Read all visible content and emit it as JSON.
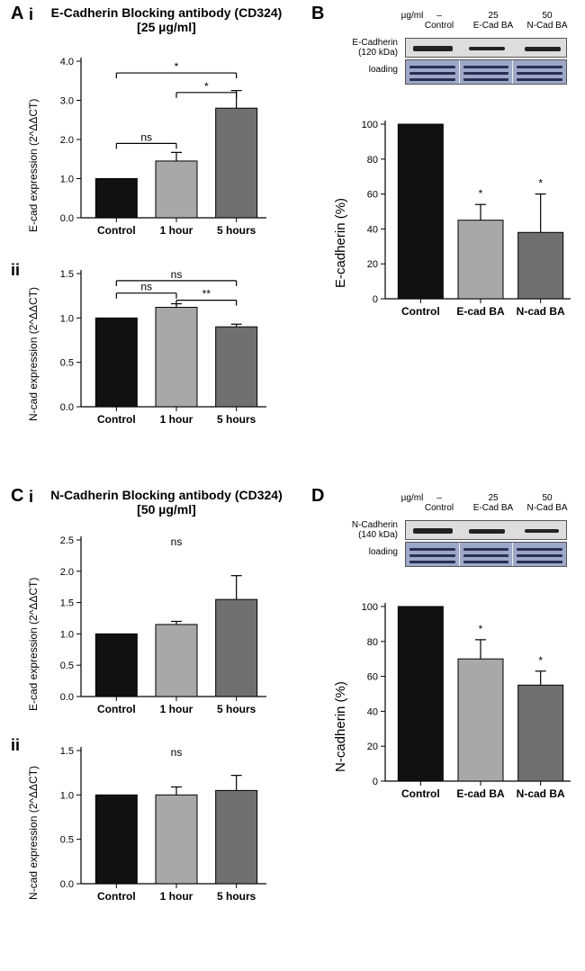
{
  "labels": {
    "A": "A",
    "Ai_sub": "i",
    "Aii_sub": "ii",
    "B": "B",
    "C": "C",
    "Ci_sub": "i",
    "Cii_sub": "ii",
    "D": "D"
  },
  "titles": {
    "A": "E-Cadherin Blocking antibody (CD324) [25 µg/ml]",
    "C": "N-Cadherin Blocking antibody (CD324) [50 µg/ml]"
  },
  "ylabels": {
    "Ecad_expr": "E-cad expression (2^ΔΔCT)",
    "Ncad_expr": "N-cad expression (2^ΔΔCT)",
    "Ecad_pct": "E-cadherin (%)",
    "Ncad_pct": "N-cadherin (%)"
  },
  "xcats_time": [
    "Control",
    "1 hour",
    "5 hours"
  ],
  "xcats_ba": [
    "Control",
    "E-cad BA",
    "N-cad BA"
  ],
  "blot_header": {
    "ug": "µg/ml",
    "ctrl": "–\nControl",
    "e25": "25\nE-Cad BA",
    "n50": "50\nN-Cad BA"
  },
  "blot_labels": {
    "Ecad": "E-Cadherin\n(120 kDa)",
    "Ncad": "N-Cadherin\n(140 kDa)",
    "loading": "loading"
  },
  "colors": {
    "c1": "#111111",
    "c2": "#a8a8a8",
    "c3": "#707070",
    "bg": "#ffffff"
  },
  "charts": {
    "Ai": {
      "ymax": 4,
      "step": 1,
      "vals": [
        1.0,
        1.45,
        2.8
      ],
      "errs": [
        0,
        0.22,
        0.45
      ],
      "sig": [
        {
          "from": 0,
          "to": 2,
          "y": 3.7,
          "t": "*"
        },
        {
          "from": 1,
          "to": 2,
          "y": 3.2,
          "t": "*"
        },
        {
          "from": 0,
          "to": 1,
          "y": 1.9,
          "t": "ns"
        }
      ]
    },
    "Aii": {
      "ymax": 1.5,
      "step": 0.5,
      "vals": [
        1.0,
        1.12,
        0.9
      ],
      "errs": [
        0,
        0.04,
        0.03
      ],
      "sig": [
        {
          "from": 0,
          "to": 2,
          "y": 1.42,
          "t": "ns"
        },
        {
          "from": 0,
          "to": 1,
          "y": 1.28,
          "t": "ns"
        },
        {
          "from": 1,
          "to": 2,
          "y": 1.2,
          "t": "**"
        }
      ]
    },
    "B": {
      "ymax": 100,
      "step": 20,
      "vals": [
        100,
        45,
        38
      ],
      "errs": [
        0,
        9,
        22
      ],
      "sig_inline": [
        {
          "i": 1,
          "t": "*"
        },
        {
          "i": 2,
          "t": "*"
        }
      ]
    },
    "Ci": {
      "ymax": 2.5,
      "step": 0.5,
      "vals": [
        1.0,
        1.15,
        1.55
      ],
      "errs": [
        0,
        0.05,
        0.38
      ],
      "top": "ns"
    },
    "Cii": {
      "ymax": 1.5,
      "step": 0.5,
      "vals": [
        1.0,
        1.0,
        1.05
      ],
      "errs": [
        0,
        0.09,
        0.17
      ],
      "top": "ns"
    },
    "D": {
      "ymax": 100,
      "step": 20,
      "vals": [
        100,
        70,
        55
      ],
      "errs": [
        0,
        11,
        8
      ],
      "sig_inline": [
        {
          "i": 1,
          "t": "*"
        },
        {
          "i": 2,
          "t": "*"
        }
      ]
    }
  }
}
